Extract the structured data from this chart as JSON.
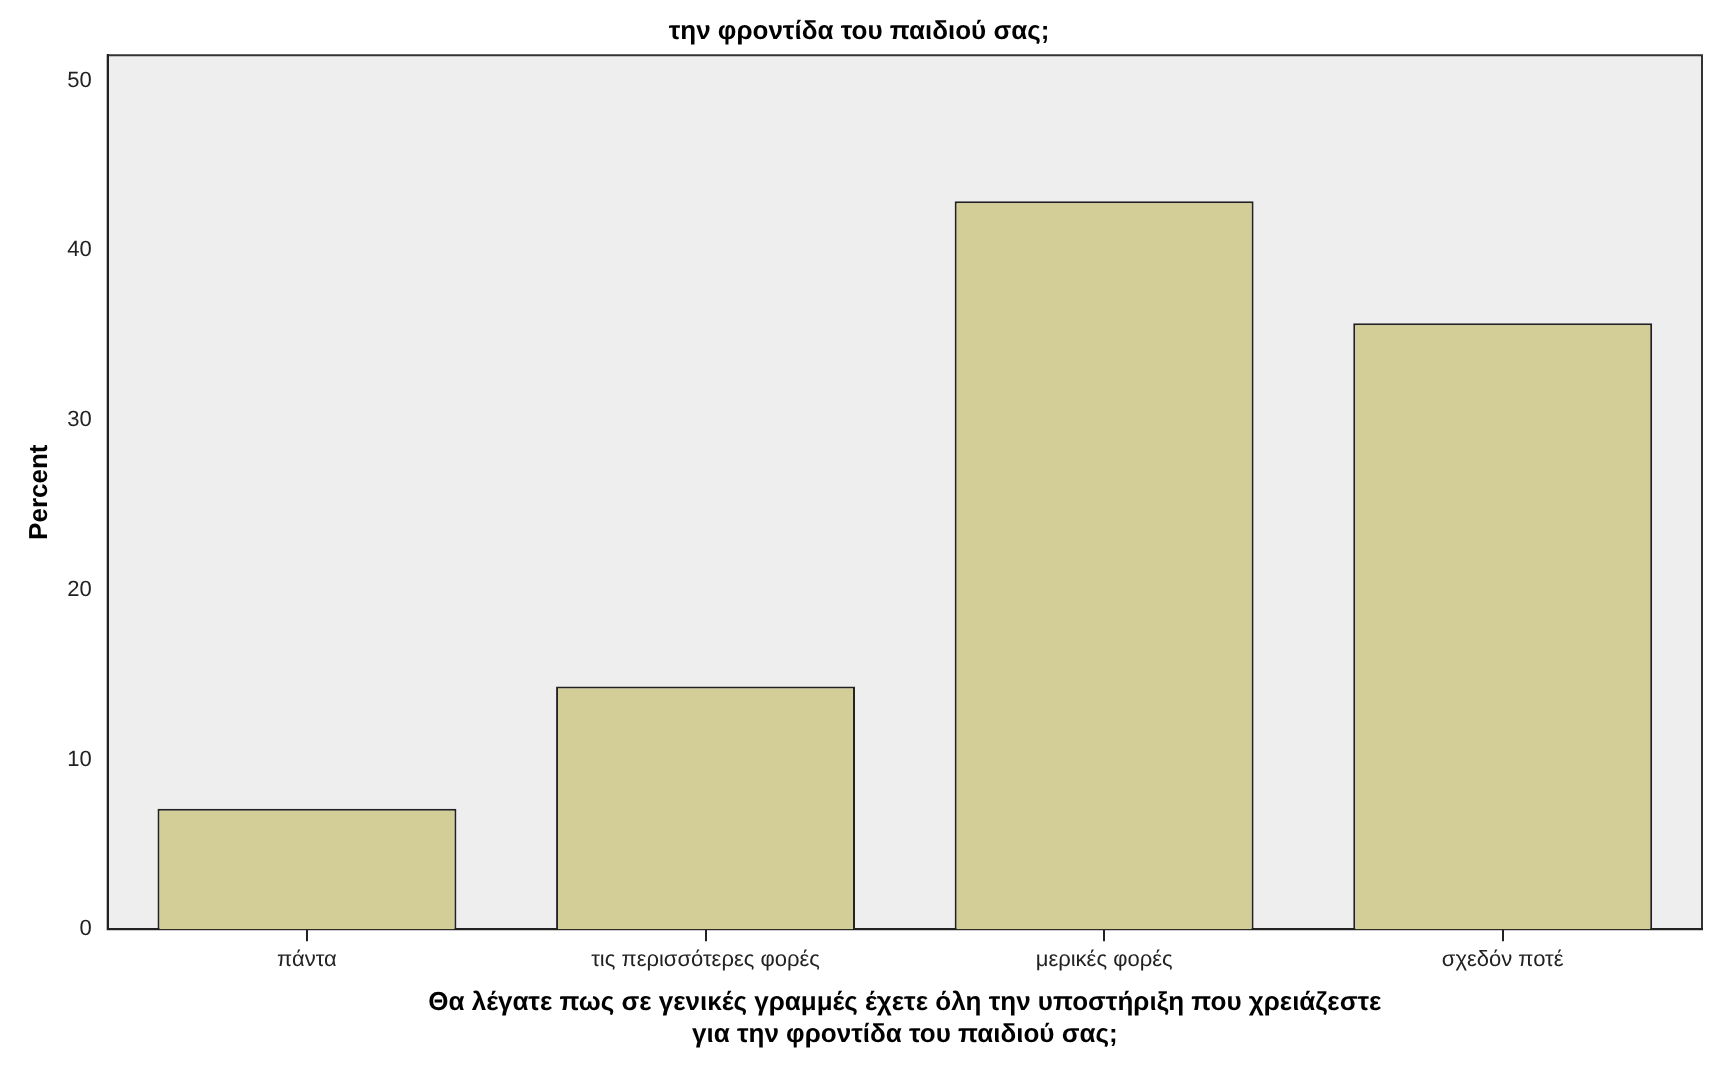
{
  "chart_data": {
    "type": "bar",
    "title": "την φροντίδα του παιδιού σας;",
    "xlabel": "Θα λέγατε πως σε γενικές γραμμές έχετε όλη την υποστήριξη που χρειάζεστε για την φροντίδα του παιδιού σας;",
    "ylabel": "Percent",
    "categories": [
      "πάντα",
      "τις περισσότερες φορές",
      "μερικές φορές",
      "σχεδόν ποτέ"
    ],
    "values": [
      7.1,
      14.3,
      42.9,
      35.7
    ],
    "color": "#d3ce97",
    "ylim": [
      0,
      51.5
    ],
    "yticks": [
      0,
      10,
      20,
      30,
      40,
      50
    ],
    "grid": false,
    "legend": false
  }
}
